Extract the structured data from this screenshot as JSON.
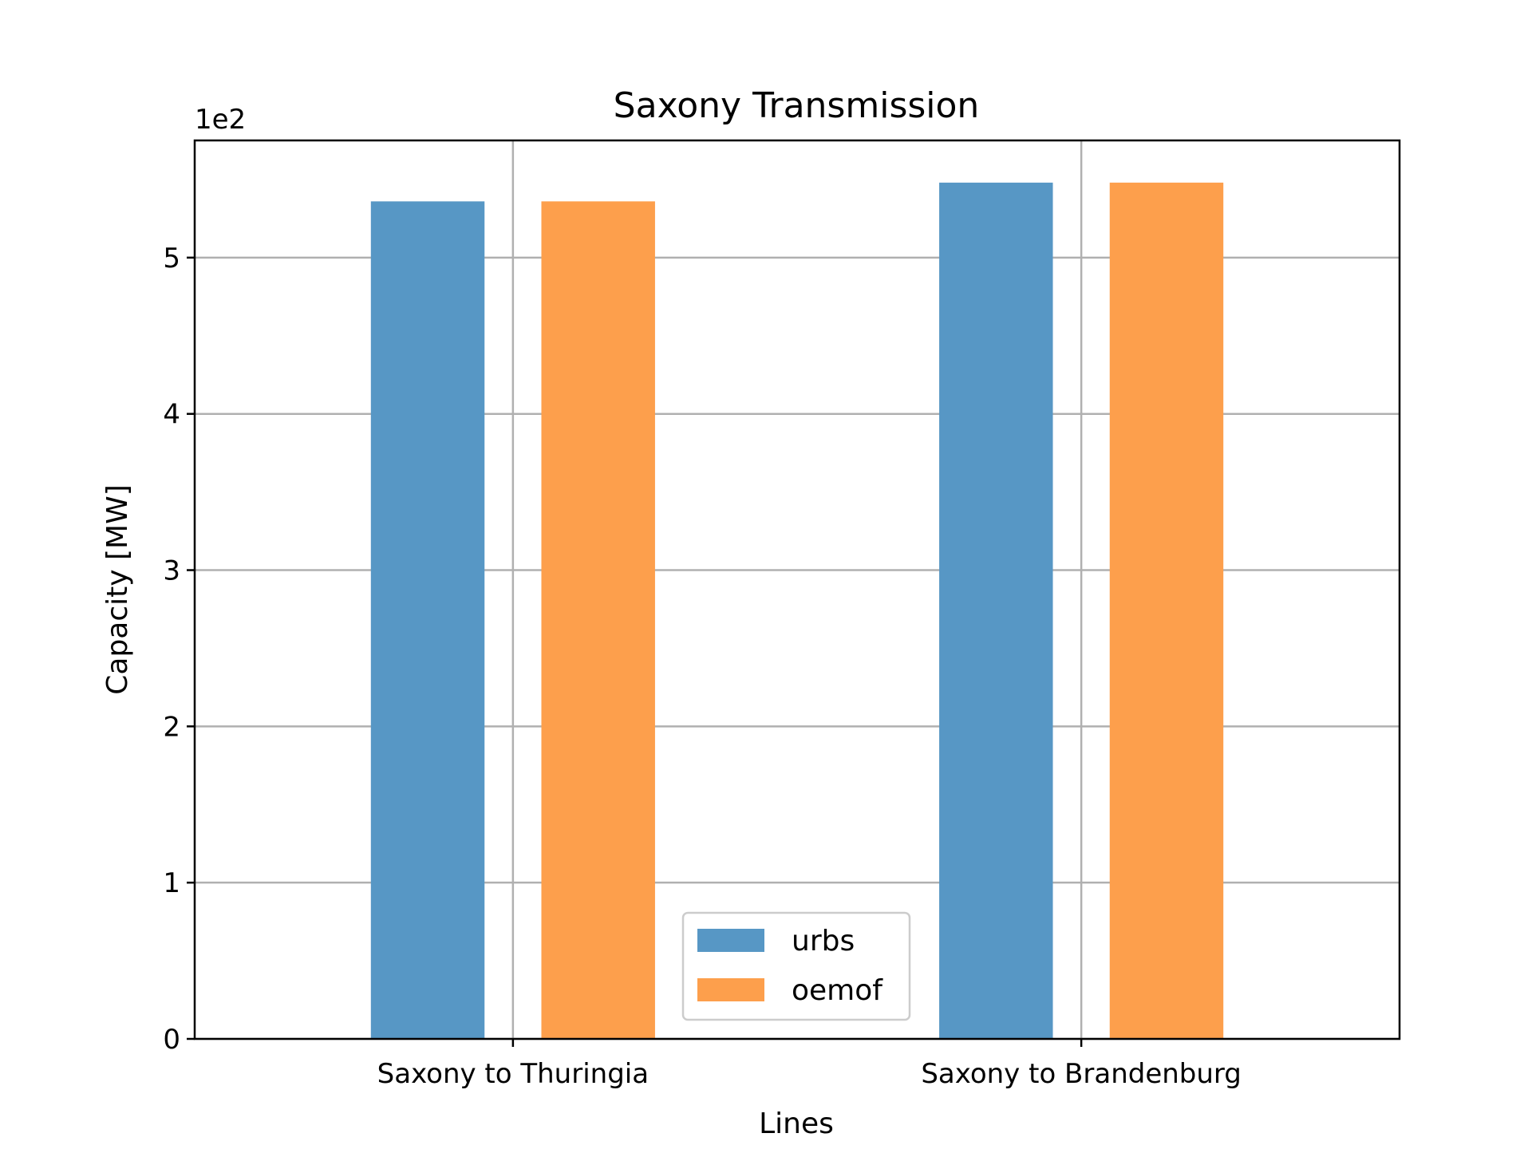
{
  "chart_data": {
    "type": "bar",
    "title": "Saxony Transmission",
    "xlabel": "Lines",
    "ylabel": "Capacity [MW]",
    "y_offset_label": "1e2",
    "categories": [
      "Saxony to Thuringia",
      "Saxony to Brandenburg"
    ],
    "series": [
      {
        "name": "urbs",
        "color": "#5797c5",
        "values": [
          5.36,
          5.48
        ]
      },
      {
        "name": "oemof",
        "color": "#fd9f4c",
        "values": [
          5.36,
          5.48
        ]
      }
    ],
    "y_unit_multiplier": 100,
    "ylim": [
      0,
      5.75
    ],
    "yticks": [
      0,
      1,
      2,
      3,
      4,
      5
    ],
    "ytick_labels": [
      "0",
      "1",
      "2",
      "3",
      "4",
      "5"
    ],
    "grid": true,
    "legend_placement": "lower center"
  }
}
